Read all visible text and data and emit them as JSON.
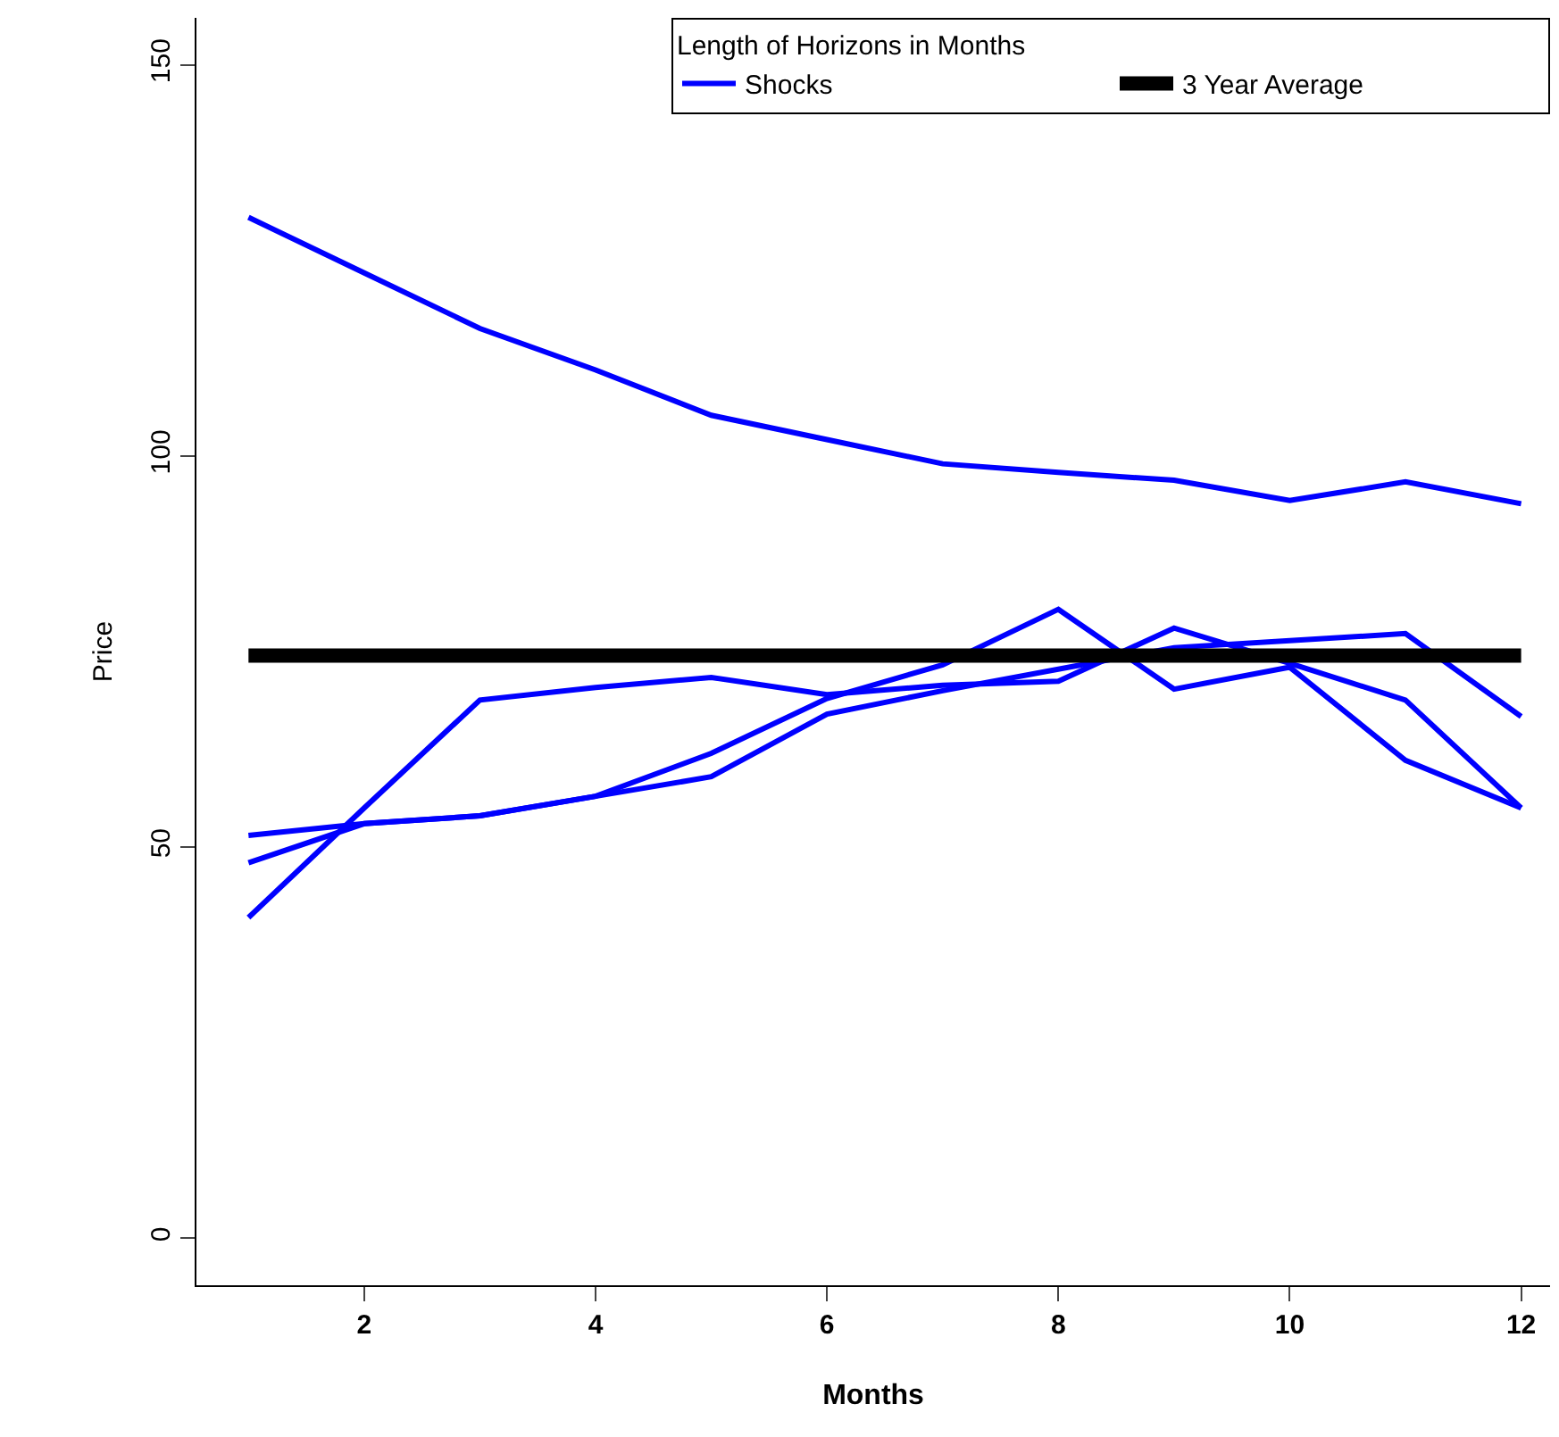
{
  "chart_data": {
    "type": "line",
    "xlabel": "Months",
    "ylabel": "Price",
    "legend_title": "Length of Horizons in Months",
    "x": [
      1,
      2,
      3,
      4,
      5,
      6,
      7,
      8,
      9,
      10,
      11,
      12
    ],
    "series": [
      {
        "name": "Shocks",
        "color": "#0000ff",
        "values": [
          130.5,
          123.4,
          116.3,
          111,
          105.2,
          102.1,
          99,
          97.9,
          96.9,
          94.3,
          96.7,
          93.9
        ]
      },
      {
        "color": "#0000ff",
        "values": [
          41,
          55,
          68.8,
          70.4,
          71.7,
          69.5,
          70.7,
          71.2,
          78,
          73.5,
          68.8,
          55
        ]
      },
      {
        "color": "#0000ff",
        "values": [
          48,
          53,
          54,
          56.5,
          62,
          69,
          73.3,
          80.4,
          70.2,
          73,
          61.1,
          55
        ]
      },
      {
        "color": "#0000ff",
        "values": [
          51.5,
          53,
          54,
          56.5,
          59,
          67,
          70,
          null,
          75.5,
          76.4,
          77.3,
          66.7
        ]
      },
      {
        "name": "3 Year Average",
        "color": "#000000",
        "values": [
          74.5,
          74.5,
          74.5,
          74.5,
          74.5,
          74.5,
          74.5,
          74.5,
          74.5,
          74.5,
          74.5,
          74.5
        ]
      }
    ],
    "xlim": [
      0.55,
      12.25
    ],
    "xticks": [
      2,
      4,
      6,
      8,
      10,
      12
    ],
    "ylim": [
      -6,
      156
    ],
    "yticks": [
      0,
      50,
      100,
      150
    ],
    "legend": "top right",
    "marker": "none",
    "line_style": "solid"
  }
}
